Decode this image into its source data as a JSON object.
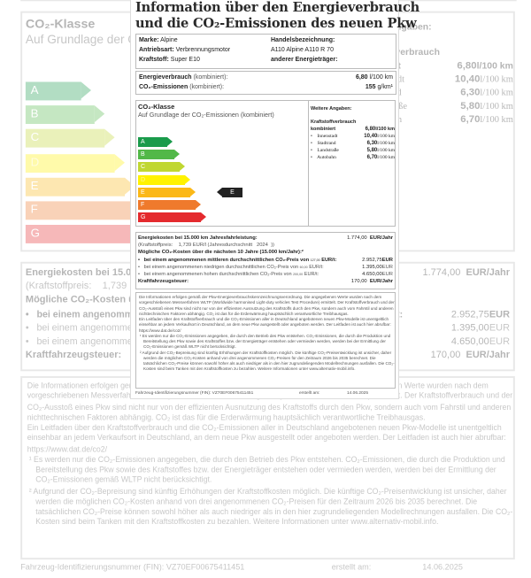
{
  "header": {
    "title_line1": "Information über den Energieverbrauch",
    "title_line2": "und die CO₂-Emissionen des neuen Pkw"
  },
  "vehicle": {
    "marke_label": "Marke:",
    "marke": "Alpine",
    "antrieb_label": "Antriebsart:",
    "antrieb": "Verbrennungsmotor",
    "kraftstoff_label": "Kraftstoff:",
    "kraftstoff": "Super E10",
    "handel_label": "Handelsbezeichnung:",
    "handel": "A110 Alpine A110 R 70",
    "energietraeger_label": "anderer Energieträger:"
  },
  "consumption": {
    "energie_label": "Energieverbrauch",
    "energie_suffix": "(kombiniert):",
    "energie_value": "6,80",
    "energie_unit": "l/100 km",
    "co2_label": "CO₂-Emissionen",
    "co2_suffix": "(kombiniert):",
    "co2_value": "155",
    "co2_unit": "g/km¹"
  },
  "co2_class": {
    "title": "CO₂-Klasse",
    "subtitle": "Auf Grundlage der CO₂-Emissionen (kombiniert)",
    "classes": [
      {
        "letter": "A",
        "color": "#1a9b4b"
      },
      {
        "letter": "B",
        "color": "#52b848"
      },
      {
        "letter": "C",
        "color": "#c0d731"
      },
      {
        "letter": "D",
        "color": "#fff200"
      },
      {
        "letter": "E",
        "color": "#fbb817"
      },
      {
        "letter": "F",
        "color": "#ef7a2c"
      },
      {
        "letter": "G",
        "color": "#e42a2e"
      }
    ],
    "current": "E"
  },
  "further": {
    "title": "Weitere Angaben:",
    "heading": "Kraftstoffverbrauch",
    "combined_label": "kombiniert",
    "combined_value": "6,80",
    "unit": "l/100 km",
    "items": [
      {
        "label": "Innenstadt",
        "value": "10,40",
        "unit": "l/100 km"
      },
      {
        "label": "Stadtrand",
        "value": "6,30",
        "unit": "l/100 km"
      },
      {
        "label": "Landstraße",
        "value": "5,80",
        "unit": "l/100 km"
      },
      {
        "label": "Autobahn",
        "value": "6,70",
        "unit": "l/100 km"
      }
    ]
  },
  "costs": {
    "energy_label": "Energiekosten bei 15.000 km Jahresfahrleistung:",
    "energy_value": "1.774,00",
    "energy_unit": "EUR/Jahr",
    "price_label": "(Kraftstoffpreis:",
    "price_value": "1,739",
    "price_unit": "EUR/l (Jahresdurchschnitt",
    "price_year": "2024",
    "price_close": "))",
    "co2_heading": "Mögliche CO₂-Kosten über die nächsten 10 Jahre (15.000 km/Jahr):²",
    "scenarios": [
      {
        "text": "bei einem angenommenen mittleren durchschnittlichen CO₂-Preis von",
        "price": "127,00",
        "per": "EUR/t:",
        "value": "2.952,75",
        "unit": "EUR"
      },
      {
        "text": "bei einem angenommenen niedrigen durchschnittlichen CO₂-Preis von",
        "price": "60,00",
        "per": "EUR/t:",
        "value": "1.395,00",
        "unit": "EUR"
      },
      {
        "text": "bei einem angenommenen hohen durchschnittlichen CO₂-Preis von",
        "price": "200,00",
        "per": "EUR/t:",
        "value": "4.650,00",
        "unit": "EUR"
      }
    ],
    "tax_label": "Kraftfahrzeugsteuer:",
    "tax_value": "170,00",
    "tax_unit": "EUR/Jahr"
  },
  "notes": {
    "p1": "Die Informationen erfolgen gemäß der Pkw-Energieverbrauchskennzeichnungsverordnung. Die angegebenen Werte wurden nach dem vorgeschriebenen Messverfahren WLTP (Worldwide harmonised Light-duty vehicles Test Procedure) ermittelt. Der Kraftstoffverbrauch und der CO₂-Ausstoß eines Pkw sind nicht nur von der effizienten Ausnutzung des Kraftstoffs durch den Pkw, sondern auch vom Fahrstil und anderen nichttechnischen Faktoren abhängig. CO₂ ist das für die Erderwärmung hauptsächlich verantwortliche Treibhausgas.",
    "p2": "Ein Leitfaden über den Kraftstoffverbrauch und die CO₂-Emissionen aller in Deutschland angebotenen neuen Pkw-Modelle ist unentgeltlich einsehbar an jedem Verkaufsort in Deutschland, an dem neue Pkw ausgestellt oder angeboten werden. Der Leitfaden ist auch hier abrufbar: https://www.dat.de/co2/",
    "fn1": "¹ Es werden nur die CO₂-Emissionen angegeben, die durch den Betrieb des Pkw entstehen. CO₂-Emissionen, die durch die Produktion und Bereitstellung des Pkw sowie des Kraftstoffes bzw. der Energieträger entstehen oder vermieden werden, werden bei der Ermittlung der CO₂-Emissionen gemäß WLTP nicht berücksichtigt.",
    "fn2": "² Aufgrund der CO₂-Bepreisung sind künftig Erhöhungen der Kraftstoffkosten möglich. Die künftige CO₂-Preisentwicklung ist unsicher, daher werden die möglichen CO₂-Kosten anhand von drei angenommenen CO₂-Preisen für den Zeitraum 2026 bis 2035 berechnet. Die tatsächlichen CO₂-Preise können sowohl höher als auch niedriger als in den hier zugrundeliegenden Modellrechnungen ausfallen. Die CO₂-Kosten sind beim Tanken mit den Kraftstoffkosten zu bezahlen. Weitere Informationen unter www.alternativ-mobil.info."
  },
  "footer": {
    "fin_label": "Fahrzeug-Identifizierungsnummer (FIN):",
    "fin": "VZ70EF00675411451",
    "date_label": "erstellt am:",
    "date": "14.06.2025"
  }
}
